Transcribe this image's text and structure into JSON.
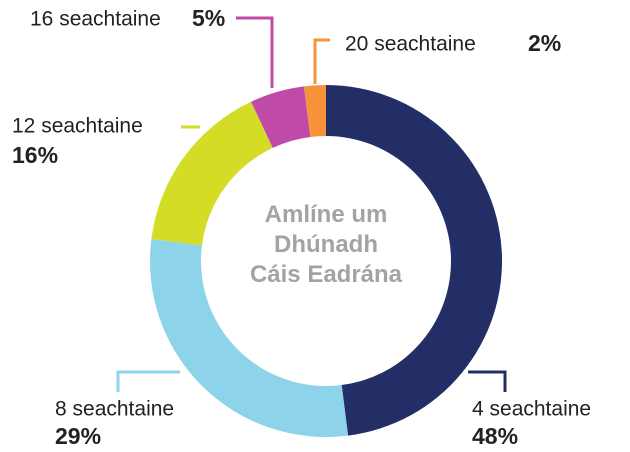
{
  "chart_data": {
    "type": "donut",
    "title": "Amlíne um Dhúnadh Cáis Eadrána",
    "categories": [
      "4 seachtaine",
      "8 seachtaine",
      "12 seachtaine",
      "16 seachtaine",
      "20 seachtaine"
    ],
    "values": [
      48,
      29,
      16,
      5,
      2
    ],
    "value_labels": [
      "48%",
      "29%",
      "16%",
      "5%",
      "2%"
    ],
    "colors": [
      "#232e66",
      "#8dd3ea",
      "#d4dc26",
      "#bf4aa8",
      "#f7943a"
    ]
  }
}
